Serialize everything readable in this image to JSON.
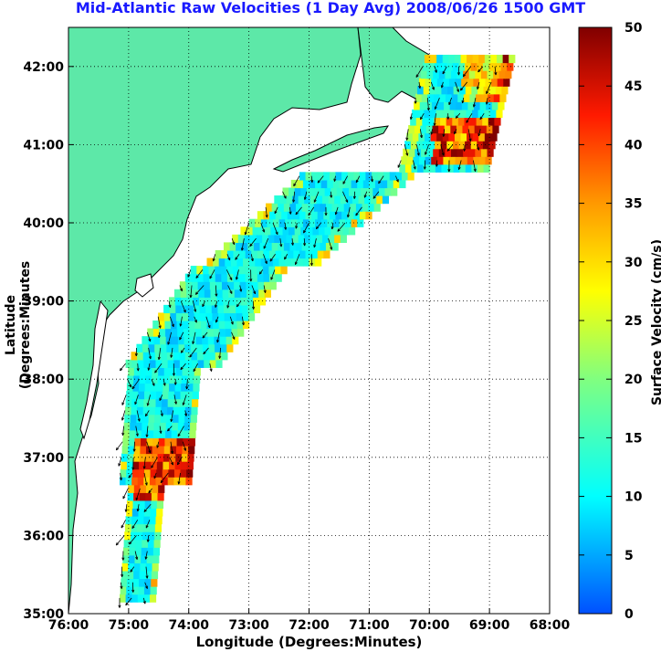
{
  "title": "Mid-Atlantic Raw Velocities (1 Day Avg) 2008/06/26 1500 GMT",
  "chart_data": {
    "type": "heatmap",
    "title": "Mid-Atlantic Raw Velocities (1 Day Avg) 2008/06/26 1500 GMT",
    "xlabel": "Longitude (Degrees:Minutes)",
    "ylabel": "Latitude (Degrees:Minutes",
    "x_ticks": [
      "76:00",
      "75:00",
      "74:00",
      "73:00",
      "72:00",
      "71:00",
      "70:00",
      "69:00",
      "68:00"
    ],
    "y_ticks": [
      "35:00",
      "36:00",
      "37:00",
      "38:00",
      "39:00",
      "40:00",
      "41:00",
      "42:00"
    ],
    "xlim": [
      -76,
      -68
    ],
    "ylim": [
      35,
      42.5
    ],
    "grid": true,
    "colorbar": {
      "label": "Surface Velocity (cm/s)",
      "min": 0,
      "max": 50,
      "ticks": [
        "0",
        "5",
        "10",
        "15",
        "20",
        "25",
        "30",
        "35",
        "40",
        "45",
        "50"
      ]
    }
  },
  "colors": {
    "land": "#5de8a8",
    "title": "#1a1aff"
  }
}
